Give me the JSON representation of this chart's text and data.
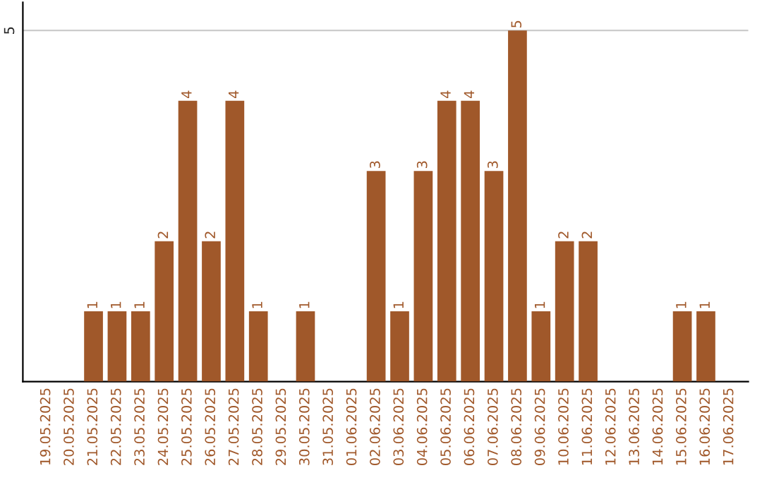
{
  "chart_data": {
    "type": "bar",
    "categories": [
      "19.05.2025",
      "20.05.2025",
      "21.05.2025",
      "22.05.2025",
      "23.05.2025",
      "24.05.2025",
      "25.05.2025",
      "26.05.2025",
      "27.05.2025",
      "28.05.2025",
      "29.05.2025",
      "30.05.2025",
      "31.05.2025",
      "01.06.2025",
      "02.06.2025",
      "03.06.2025",
      "04.06.2025",
      "05.06.2025",
      "06.06.2025",
      "07.06.2025",
      "08.06.2025",
      "09.06.2025",
      "10.06.2025",
      "11.06.2025",
      "12.06.2025",
      "13.06.2025",
      "14.06.2025",
      "15.06.2025",
      "16.06.2025",
      "17.06.2025"
    ],
    "values": [
      0,
      0,
      1,
      1,
      1,
      2,
      4,
      2,
      4,
      1,
      0,
      1,
      0,
      0,
      3,
      1,
      3,
      4,
      4,
      3,
      5,
      1,
      2,
      2,
      0,
      0,
      0,
      1,
      1,
      0
    ],
    "value_labels": [
      null,
      null,
      "1",
      "1",
      "1",
      "2",
      "4",
      "2",
      "4",
      "1",
      null,
      "1",
      null,
      null,
      "3",
      "1",
      "3",
      "4",
      "4",
      "3",
      "5",
      "1",
      "2",
      "2",
      null,
      null,
      null,
      "1",
      "1",
      null
    ],
    "color": "#a0582a",
    "ylim": [
      0,
      5.4
    ],
    "yticks": [
      5
    ],
    "grid": "y"
  }
}
